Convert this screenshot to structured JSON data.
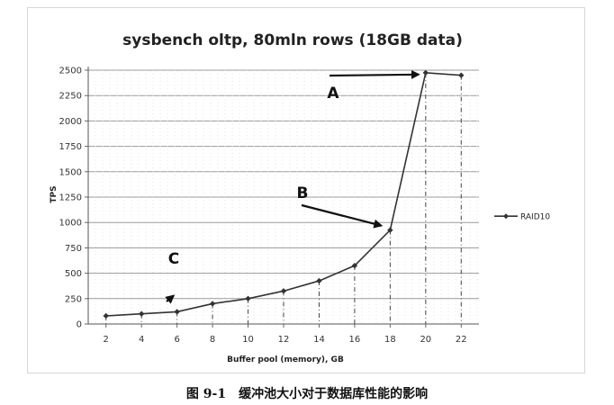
{
  "chart_data": {
    "type": "line",
    "title": "sysbench oltp, 80mln rows (18GB data)",
    "xlabel": "Buffer pool (memory), GB",
    "ylabel": "TPS",
    "x": [
      2,
      4,
      6,
      8,
      10,
      12,
      14,
      16,
      18,
      20,
      22
    ],
    "xlim": [
      1,
      23
    ],
    "ylim": [
      0,
      2500
    ],
    "yticks": [
      0,
      250,
      500,
      750,
      1000,
      1250,
      1500,
      1750,
      2000,
      2250,
      2500
    ],
    "series": [
      {
        "name": "RAID10",
        "color": "#333333",
        "values": [
          80,
          100,
          120,
          200,
          250,
          325,
          425,
          575,
          925,
          2475,
          2450
        ]
      }
    ],
    "grid": true,
    "legend_position": "right",
    "annotations": [
      {
        "label": "A",
        "target": [
          20,
          2475
        ]
      },
      {
        "label": "B",
        "target": [
          18,
          925
        ]
      },
      {
        "label": "C",
        "target": [
          6,
          225
        ]
      }
    ]
  },
  "caption": "图 9-1　缓冲池大小对于数据库性能的影响"
}
